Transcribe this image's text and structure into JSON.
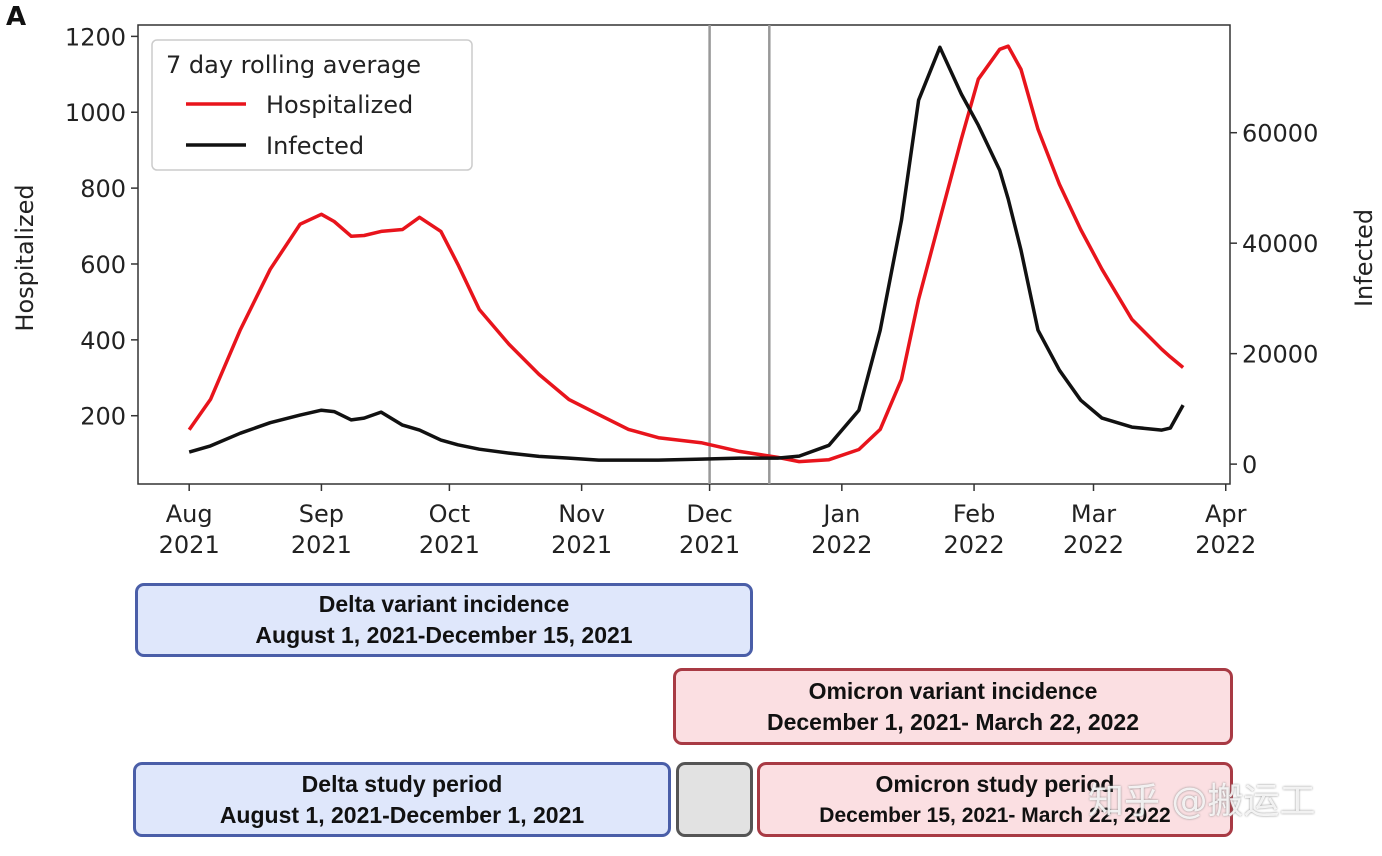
{
  "panel_label": "A",
  "chart_data": {
    "type": "line",
    "legend": {
      "title": "7 day rolling average",
      "position": "top-left"
    },
    "x": [
      "2021-08-01",
      "2021-08-06",
      "2021-08-13",
      "2021-08-20",
      "2021-08-27",
      "2021-09-01",
      "2021-09-04",
      "2021-09-08",
      "2021-09-11",
      "2021-09-15",
      "2021-09-20",
      "2021-09-24",
      "2021-09-29",
      "2021-10-03",
      "2021-10-08",
      "2021-10-15",
      "2021-10-22",
      "2021-10-29",
      "2021-11-05",
      "2021-11-12",
      "2021-11-19",
      "2021-11-29",
      "2021-12-08",
      "2021-12-17",
      "2021-12-22",
      "2021-12-29",
      "2022-01-05",
      "2022-01-10",
      "2022-01-15",
      "2022-01-19",
      "2022-01-24",
      "2022-01-29",
      "2022-02-02",
      "2022-02-07",
      "2022-02-09",
      "2022-02-12",
      "2022-02-16",
      "2022-02-21",
      "2022-02-26",
      "2022-03-03",
      "2022-03-10",
      "2022-03-17",
      "2022-03-19",
      "2022-03-22"
    ],
    "series": [
      {
        "name": "Hospitalized",
        "axis": "left",
        "color": "#e8141c",
        "values": [
          163,
          243,
          427,
          586,
          705,
          731,
          712,
          673,
          675,
          686,
          691,
          723,
          686,
          599,
          480,
          388,
          309,
          243,
          203,
          164,
          142,
          129,
          106,
          90,
          79,
          84,
          111,
          164,
          296,
          507,
          718,
          929,
          1087,
          1166,
          1174,
          1113,
          955,
          810,
          691,
          586,
          454,
          375,
          355,
          327
        ]
      },
      {
        "name": "Infected",
        "axis": "right",
        "color": "#111111",
        "values": [
          2170,
          3300,
          5600,
          7500,
          8870,
          9770,
          9500,
          8000,
          8330,
          9410,
          7060,
          6150,
          4340,
          3500,
          2700,
          1990,
          1400,
          1090,
          720,
          720,
          720,
          900,
          1090,
          1090,
          1450,
          3400,
          9770,
          24250,
          44160,
          65880,
          75470,
          67000,
          61360,
          53210,
          48000,
          38730,
          24250,
          17010,
          11580,
          8330,
          6700,
          6150,
          6520,
          10680
        ]
      }
    ],
    "xlim": [
      "2021-07-20",
      "2022-04-02"
    ],
    "x_ticks": [
      {
        "date": "2021-08-01",
        "label": [
          "Aug",
          "2021"
        ]
      },
      {
        "date": "2021-09-01",
        "label": [
          "Sep",
          "2021"
        ]
      },
      {
        "date": "2021-10-01",
        "label": [
          "Oct",
          "2021"
        ]
      },
      {
        "date": "2021-11-01",
        "label": [
          "Nov",
          "2021"
        ]
      },
      {
        "date": "2021-12-01",
        "label": [
          "Dec",
          "2021"
        ]
      },
      {
        "date": "2022-01-01",
        "label": [
          "Jan",
          "2022"
        ]
      },
      {
        "date": "2022-02-01",
        "label": [
          "Feb",
          "2022"
        ]
      },
      {
        "date": "2022-03-01",
        "label": [
          "Mar",
          "2022"
        ]
      },
      {
        "date": "2022-04-01",
        "label": [
          "Apr",
          "2022"
        ]
      }
    ],
    "ylabel_left": "Hospitalized",
    "ylim_left": [
      20,
      1230
    ],
    "yticks_left": [
      200,
      400,
      600,
      800,
      1000,
      1200
    ],
    "ylabel_right": "Infected",
    "ylim_right": [
      -3600,
      79500
    ],
    "yticks_right": [
      0,
      20000,
      40000,
      60000
    ],
    "vlines": [
      "2021-12-01",
      "2021-12-15"
    ],
    "grid": false
  },
  "periods": {
    "delta_incidence": {
      "title": "Delta variant incidence",
      "range": "August 1, 2021-December 15, 2021"
    },
    "omicron_incidence": {
      "title": "Omicron variant incidence",
      "range": "December 1, 2021- March 22, 2022"
    },
    "delta_study": {
      "title": "Delta study period",
      "range": "August 1, 2021-December 1, 2021"
    },
    "omicron_study": {
      "title": "Omicron study period",
      "range": "December 15, 2021- March 22, 2022"
    }
  },
  "watermark": "知乎 @搬运工"
}
